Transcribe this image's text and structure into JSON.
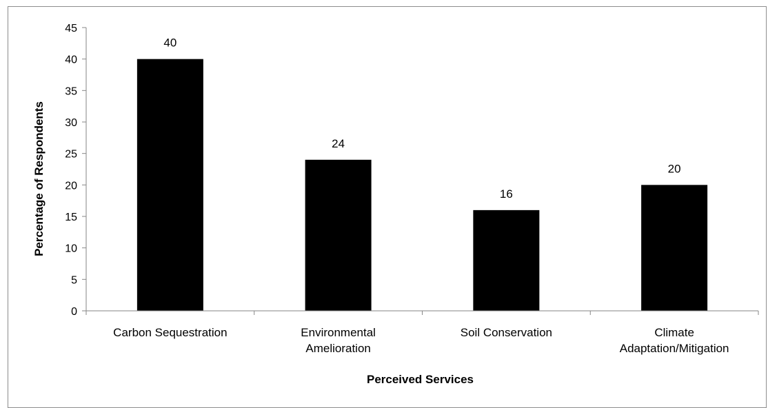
{
  "chart_data": {
    "type": "bar",
    "title": "",
    "xlabel": "Perceived Services",
    "ylabel": "Percentage of Respondents",
    "ylim": [
      0,
      45
    ],
    "ytick_step": 5,
    "grid": false,
    "legend": "none",
    "categories": [
      [
        "Carbon Sequestration"
      ],
      [
        "Environmental",
        "Amelioration"
      ],
      [
        "Soil Conservation"
      ],
      [
        "Climate",
        "Adaptation/Mitigation"
      ]
    ],
    "values": [
      40,
      24,
      16,
      20
    ],
    "bar_color": "#000000",
    "axis_color": "#868686"
  }
}
